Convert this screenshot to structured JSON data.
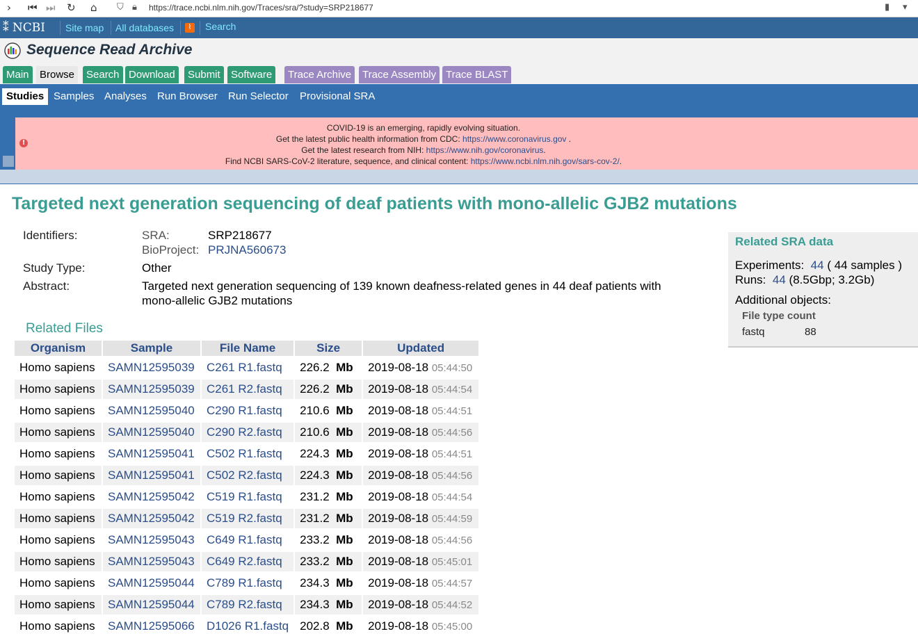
{
  "browser": {
    "url": "https://trace.ncbi.nlm.nih.gov/Traces/sra/?study=SRP218677"
  },
  "ncbi": {
    "logo": "NCBI",
    "links": [
      "Site map",
      "All databases",
      "Search"
    ]
  },
  "header": {
    "title": "Sequence Read Archive"
  },
  "tabs": [
    {
      "label": "Main"
    },
    {
      "label": "Browse"
    },
    {
      "label": "Search"
    },
    {
      "label": "Download"
    },
    {
      "label": "Submit"
    },
    {
      "label": "Software"
    },
    {
      "label": "Trace Archive"
    },
    {
      "label": "Trace Assembly"
    },
    {
      "label": "Trace BLAST"
    }
  ],
  "subtabs": [
    "Studies",
    "Samples",
    "Analyses",
    "Run Browser",
    "Run Selector",
    "Provisional SRA"
  ],
  "covid": {
    "l1": "COVID-19 is an emerging, rapidly evolving situation.",
    "l2": "Get the latest public health information from CDC: ",
    "l2link": "https://www.coronavirus.gov",
    "l3": "Get the latest research from NIH: ",
    "l3link": "https://www.nih.gov/coronavirus",
    "l4": "Find NCBI SARS-CoV-2 literature, sequence, and clinical content: ",
    "l4link": "https://www.ncbi.nlm.nih.gov/sars-cov-2/"
  },
  "study": {
    "title": "Targeted next generation sequencing of deaf patients with mono-allelic GJB2 mutations",
    "identifiers_label": "Identifiers:",
    "sra_label": "SRA:",
    "sra": "SRP218677",
    "bioproject_label": "BioProject:",
    "bioproject": "PRJNA560673",
    "type_label": "Study Type:",
    "type": "Other",
    "abstract_label": "Abstract:",
    "abstract_l1": "Targeted next generation sequencing of 139 known deafness-related genes in 44 deaf patients with",
    "abstract_l2": "mono-allelic GJB2 mutations"
  },
  "related_files": {
    "heading": "Related Files",
    "columns": [
      "Organism",
      "Sample",
      "File Name",
      "Size",
      "Updated"
    ],
    "rows": [
      {
        "org": "Homo sapiens",
        "sample": "SAMN12595039",
        "file": "C261 R1.fastq",
        "size": "226.2",
        "unit": "Mb",
        "date": "2019-08-18",
        "time": "05:44:50"
      },
      {
        "org": "Homo sapiens",
        "sample": "SAMN12595039",
        "file": "C261 R2.fastq",
        "size": "226.2",
        "unit": "Mb",
        "date": "2019-08-18",
        "time": "05:44:54"
      },
      {
        "org": "Homo sapiens",
        "sample": "SAMN12595040",
        "file": "C290 R1.fastq",
        "size": "210.6",
        "unit": "Mb",
        "date": "2019-08-18",
        "time": "05:44:51"
      },
      {
        "org": "Homo sapiens",
        "sample": "SAMN12595040",
        "file": "C290 R2.fastq",
        "size": "210.6",
        "unit": "Mb",
        "date": "2019-08-18",
        "time": "05:44:56"
      },
      {
        "org": "Homo sapiens",
        "sample": "SAMN12595041",
        "file": "C502 R1.fastq",
        "size": "224.3",
        "unit": "Mb",
        "date": "2019-08-18",
        "time": "05:44:51"
      },
      {
        "org": "Homo sapiens",
        "sample": "SAMN12595041",
        "file": "C502 R2.fastq",
        "size": "224.3",
        "unit": "Mb",
        "date": "2019-08-18",
        "time": "05:44:56"
      },
      {
        "org": "Homo sapiens",
        "sample": "SAMN12595042",
        "file": "C519 R1.fastq",
        "size": "231.2",
        "unit": "Mb",
        "date": "2019-08-18",
        "time": "05:44:54"
      },
      {
        "org": "Homo sapiens",
        "sample": "SAMN12595042",
        "file": "C519 R2.fastq",
        "size": "231.2",
        "unit": "Mb",
        "date": "2019-08-18",
        "time": "05:44:59"
      },
      {
        "org": "Homo sapiens",
        "sample": "SAMN12595043",
        "file": "C649 R1.fastq",
        "size": "233.2",
        "unit": "Mb",
        "date": "2019-08-18",
        "time": "05:44:56"
      },
      {
        "org": "Homo sapiens",
        "sample": "SAMN12595043",
        "file": "C649 R2.fastq",
        "size": "233.2",
        "unit": "Mb",
        "date": "2019-08-18",
        "time": "05:45:01"
      },
      {
        "org": "Homo sapiens",
        "sample": "SAMN12595044",
        "file": "C789 R1.fastq",
        "size": "234.3",
        "unit": "Mb",
        "date": "2019-08-18",
        "time": "05:44:57"
      },
      {
        "org": "Homo sapiens",
        "sample": "SAMN12595044",
        "file": "C789 R2.fastq",
        "size": "234.3",
        "unit": "Mb",
        "date": "2019-08-18",
        "time": "05:44:52"
      },
      {
        "org": "Homo sapiens",
        "sample": "SAMN12595066",
        "file": "D1026 R1.fastq",
        "size": "202.8",
        "unit": "Mb",
        "date": "2019-08-18",
        "time": "05:45:00"
      }
    ]
  },
  "related_sra": {
    "heading": "Related SRA data",
    "experiments_label": "Experiments:",
    "experiments": "44",
    "experiments_note": "( 44 samples )",
    "runs_label": "Runs:",
    "runs": "44",
    "runs_note": "(8.5Gbp; 3.2Gb)",
    "additional_label": "Additional objects:",
    "ft_header": "File type count",
    "ft_type": "fastq",
    "ft_count": "88"
  }
}
